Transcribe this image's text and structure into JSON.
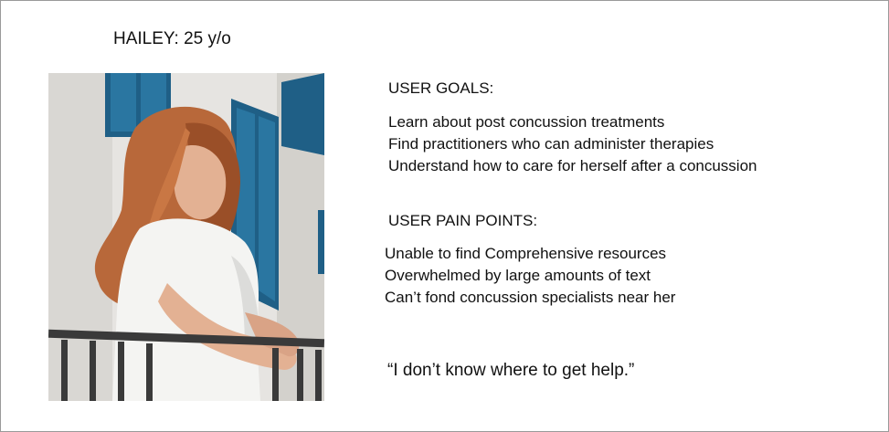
{
  "persona": {
    "title": "HAILEY: 25 y/o",
    "photo": {
      "subject": "young woman with long auburn hair in a white t-shirt leaning on a balcony railing",
      "colors": {
        "wall": "#e6e4e1",
        "window": "#1f5f86",
        "hair": "#b8683a",
        "skin": "#e3b193",
        "shirt": "#f4f4f2",
        "railing": "#3a3a3a"
      }
    },
    "goals": {
      "heading": "USER GOALS:",
      "items": [
        "Learn about post concussion treatments",
        "Find practitioners who can administer therapies",
        "Understand how to care for herself after a concussion"
      ]
    },
    "pain_points": {
      "heading": "USER PAIN POINTS:",
      "items": [
        "Unable to find Comprehensive resources",
        "Overwhelmed by large amounts of text",
        "Can’t fond concussion specialists near her"
      ]
    },
    "quote": "“I don’t know where to get help.”"
  }
}
